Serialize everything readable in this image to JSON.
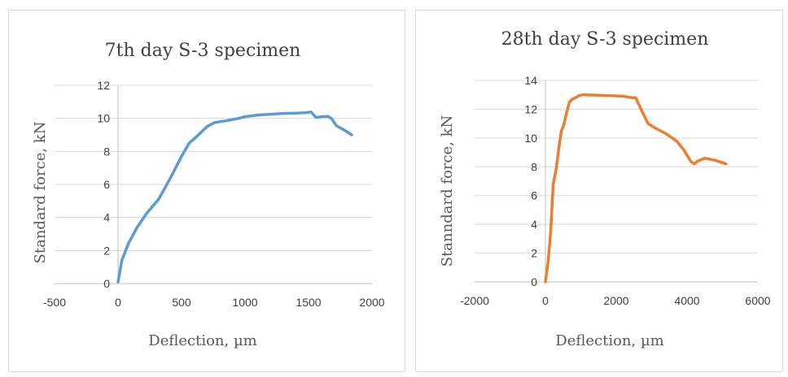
{
  "chart_data": [
    {
      "type": "line",
      "title": "7th day S-3 specimen",
      "xlabel": "Deflection, µm",
      "ylabel": "Standard force, kN",
      "xlim": [
        -500,
        2000
      ],
      "ylim": [
        0,
        12
      ],
      "xticks": [
        -500,
        0,
        500,
        1000,
        1500,
        2000
      ],
      "yticks": [
        0,
        2,
        4,
        6,
        8,
        10,
        12
      ],
      "grid": "horizontal",
      "legend": "none",
      "color": "#5B9BD5",
      "series": [
        {
          "x": [
            0,
            30,
            80,
            150,
            230,
            320,
            420,
            500,
            560,
            620,
            700,
            760,
            850,
            950,
            1000,
            1100,
            1200,
            1300,
            1400,
            1480,
            1520,
            1560,
            1600,
            1650,
            1680,
            1720,
            1780,
            1840
          ],
          "y": [
            0.1,
            1.4,
            2.4,
            3.4,
            4.3,
            5.1,
            6.5,
            7.7,
            8.5,
            8.9,
            9.5,
            9.75,
            9.85,
            10.0,
            10.1,
            10.2,
            10.25,
            10.3,
            10.32,
            10.35,
            10.38,
            10.05,
            10.1,
            10.12,
            10.0,
            9.55,
            9.3,
            9.0
          ]
        }
      ]
    },
    {
      "type": "line",
      "title": "28th day S-3 specimen",
      "xlabel": "Deflection, µm",
      "ylabel": "Stanndard force, kN",
      "xlim": [
        -2000,
        6000
      ],
      "ylim": [
        0,
        14
      ],
      "xticks": [
        -2000,
        0,
        2000,
        4000,
        6000
      ],
      "yticks": [
        0,
        2,
        4,
        6,
        8,
        10,
        12,
        14
      ],
      "grid": "horizontal",
      "legend": "none",
      "color": "#ED7D31",
      "series": [
        {
          "x": [
            0,
            80,
            150,
            220,
            300,
            380,
            450,
            520,
            600,
            680,
            760,
            850,
            950,
            1050,
            1150,
            1400,
            1800,
            2200,
            2450,
            2550,
            2700,
            2900,
            3100,
            3400,
            3700,
            3900,
            4100,
            4200,
            4300,
            4500,
            4800,
            5100
          ],
          "y": [
            0,
            1.5,
            3.5,
            6.8,
            7.8,
            9.3,
            10.5,
            10.9,
            11.8,
            12.5,
            12.7,
            12.8,
            12.95,
            13.0,
            13.0,
            12.98,
            12.95,
            12.9,
            12.8,
            12.8,
            12.0,
            11.0,
            10.7,
            10.3,
            9.8,
            9.2,
            8.4,
            8.2,
            8.4,
            8.6,
            8.45,
            8.2
          ]
        }
      ]
    }
  ]
}
